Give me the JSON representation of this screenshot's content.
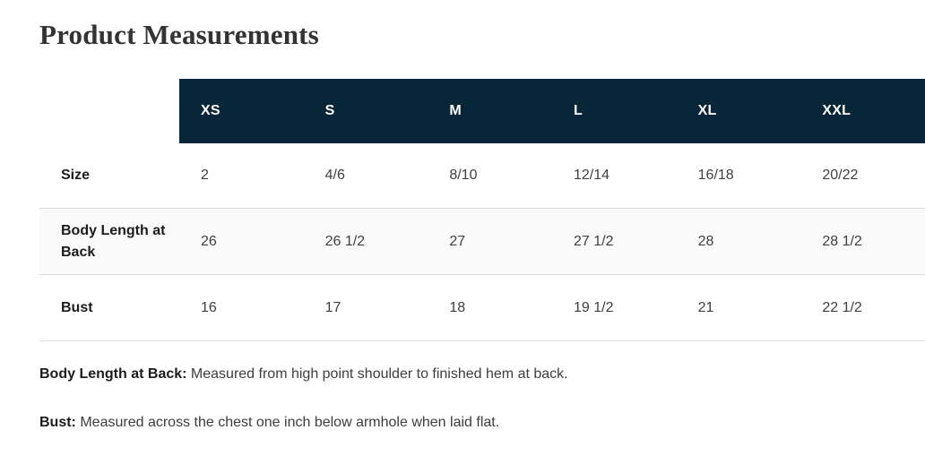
{
  "page": {
    "title": "Product Measurements"
  },
  "table": {
    "sizes": [
      "XS",
      "S",
      "M",
      "L",
      "XL",
      "XXL"
    ],
    "rows": [
      {
        "label": "Size",
        "values": [
          "2",
          "4/6",
          "8/10",
          "12/14",
          "16/18",
          "20/22"
        ]
      },
      {
        "label": "Body Length at Back",
        "values": [
          "26",
          "26 1/2",
          "27",
          "27 1/2",
          "28",
          "28 1/2"
        ]
      },
      {
        "label": "Bust",
        "values": [
          "16",
          "17",
          "18",
          "19 1/2",
          "21",
          "22 1/2"
        ]
      }
    ]
  },
  "notes": [
    {
      "term": "Body Length at Back:",
      "definition": "Measured from high point shoulder to finished hem at back."
    },
    {
      "term": "Bust:",
      "definition": "Measured across the chest one inch below armhole when laid flat."
    }
  ],
  "colors": {
    "header_bg": "#072637",
    "header_text": "#ffffff",
    "alt_row_bg": "#fafafa",
    "divider": "#d8d8d8",
    "title_text": "#333333"
  }
}
